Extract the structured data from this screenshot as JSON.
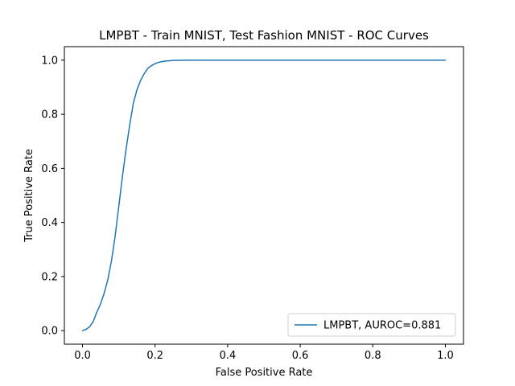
{
  "chart_data": {
    "type": "line",
    "title": "LMPBT - Train MNIST, Test Fashion MNIST - ROC Curves",
    "xlabel": "False Positive Rate",
    "ylabel": "True Positive Rate",
    "xlim": [
      -0.05,
      1.05
    ],
    "ylim": [
      -0.05,
      1.05
    ],
    "xticks": [
      0.0,
      0.2,
      0.4,
      0.6,
      0.8,
      1.0
    ],
    "yticks": [
      0.0,
      0.2,
      0.4,
      0.6,
      0.8,
      1.0
    ],
    "xtick_labels": [
      "0.0",
      "0.2",
      "0.4",
      "0.6",
      "0.8",
      "1.0"
    ],
    "ytick_labels": [
      "0.0",
      "0.2",
      "0.4",
      "0.6",
      "0.8",
      "1.0"
    ],
    "grid": false,
    "legend_position": "lower-right",
    "series": [
      {
        "name": "LMPBT, AUROC=0.881",
        "color": "#1f77b4",
        "x": [
          0.0,
          0.01,
          0.02,
          0.03,
          0.04,
          0.05,
          0.06,
          0.07,
          0.08,
          0.09,
          0.1,
          0.11,
          0.12,
          0.13,
          0.14,
          0.15,
          0.16,
          0.17,
          0.18,
          0.19,
          0.2,
          0.21,
          0.22,
          0.23,
          0.25,
          0.28,
          0.3,
          0.4,
          0.6,
          0.8,
          1.0
        ],
        "y": [
          0.0,
          0.005,
          0.015,
          0.035,
          0.07,
          0.1,
          0.14,
          0.19,
          0.26,
          0.35,
          0.46,
          0.57,
          0.67,
          0.76,
          0.84,
          0.89,
          0.925,
          0.95,
          0.97,
          0.98,
          0.987,
          0.992,
          0.995,
          0.997,
          0.999,
          1.0,
          1.0,
          1.0,
          1.0,
          1.0,
          1.0
        ]
      }
    ]
  }
}
